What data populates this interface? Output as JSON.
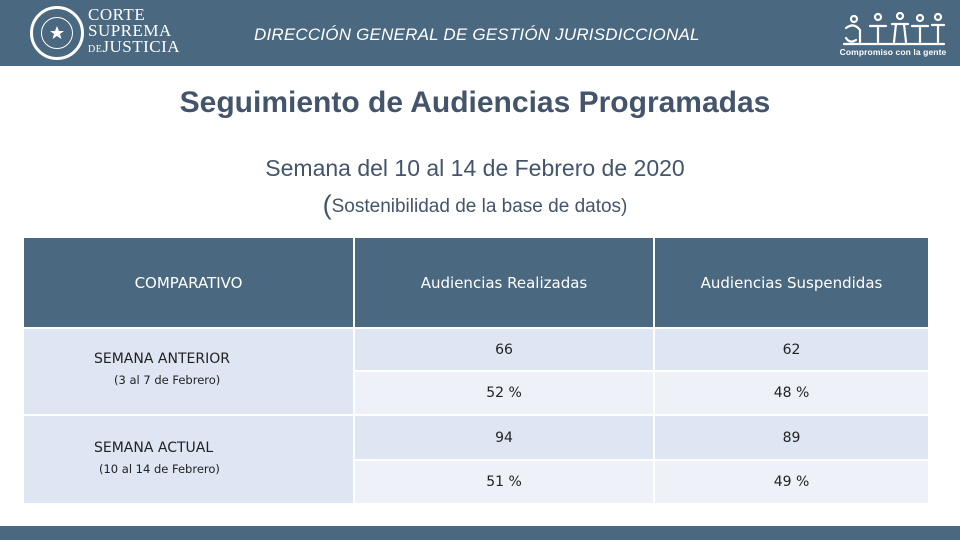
{
  "header": {
    "logo_line1": "CORTE",
    "logo_line2": "SUPREMA",
    "logo_line3_small": "DE",
    "logo_line3": "JUSTICIA",
    "title": "DIRECCIÓN GENERAL DE GESTIÓN JURISDICCIONAL",
    "slogan": "Compromiso con la gente",
    "colors": {
      "bar": "#4a6880",
      "text": "#ffffff"
    }
  },
  "main_title": "Seguimiento de Audiencias Programadas",
  "subtitle": "Semana del 10 al 14 de Febrero de 2020",
  "subnote": {
    "open": "(",
    "text": "Sostenibilidad de la base de datos)"
  },
  "table": {
    "headers": [
      "COMPARATIVO",
      "Audiencias Realizadas",
      "Audiencias Suspendidas"
    ],
    "rows": [
      {
        "label": "SEMANA ANTERIOR",
        "sublabel": "(3 al 7 de Febrero)",
        "count_realizadas": "66",
        "count_suspendidas": "62",
        "pct_realizadas": "52 %",
        "pct_suspendidas": "48 %"
      },
      {
        "label": "SEMANA ACTUAL",
        "sublabel": "(10 al 14 de Febrero)",
        "count_realizadas": "94",
        "count_suspendidas": "89",
        "pct_realizadas": "51 %",
        "pct_suspendidas": "49 %"
      }
    ],
    "colors": {
      "header": "#4a6880",
      "row_dark": "#dde6f2",
      "row_light": "#eef2f8"
    }
  }
}
